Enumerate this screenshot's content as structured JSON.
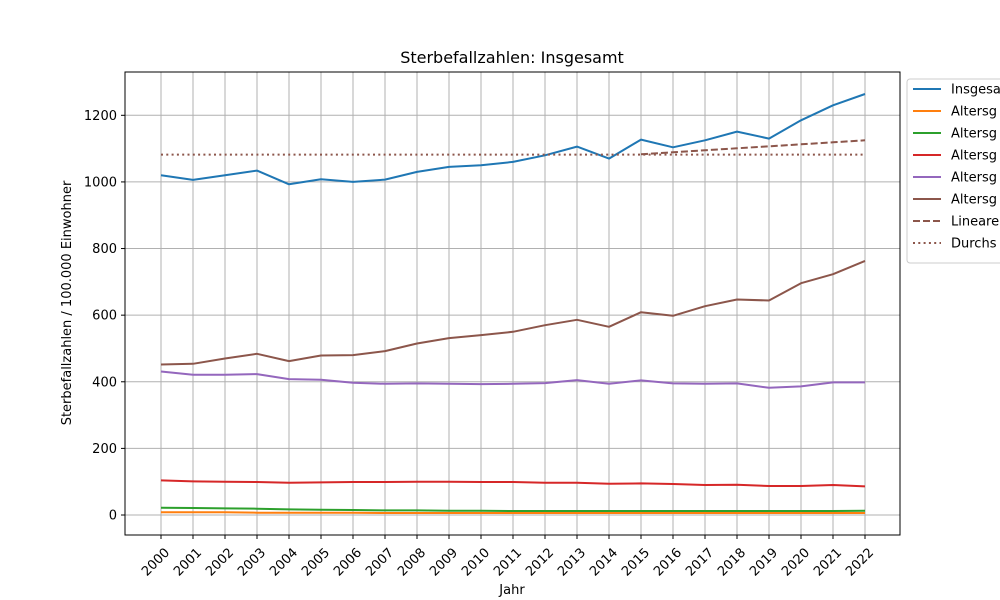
{
  "chart_data": {
    "type": "line",
    "title": "Sterbefallzahlen: Insgesamt",
    "xlabel": "Jahr",
    "ylabel": "Sterbefallzahlen / 100.000 Einwohner",
    "ylim": [
      -60,
      1330
    ],
    "yticks": [
      0,
      200,
      400,
      600,
      800,
      1000,
      1200
    ],
    "x": [
      "2000",
      "2001",
      "2002",
      "2003",
      "2004",
      "2005",
      "2006",
      "2007",
      "2008",
      "2009",
      "2010",
      "2011",
      "2012",
      "2013",
      "2014",
      "2015",
      "2016",
      "2017",
      "2018",
      "2019",
      "2020",
      "2021",
      "2022"
    ],
    "grid": true,
    "legend_position": "right",
    "series": [
      {
        "name": "Insgesa",
        "color": "#1f77b4",
        "style": "solid",
        "values": [
          1020,
          1006,
          1020,
          1034,
          993,
          1008,
          1000,
          1007,
          1030,
          1045,
          1050,
          1060,
          1080,
          1106,
          1070,
          1127,
          1104,
          1125,
          1151,
          1130,
          1185,
          1230,
          1264
        ]
      },
      {
        "name": "Altersg",
        "color": "#ff7f0e",
        "style": "solid",
        "values": [
          8,
          8,
          8,
          7,
          7,
          7,
          7,
          6,
          6,
          6,
          6,
          6,
          6,
          6,
          6,
          6,
          6,
          6,
          6,
          6,
          6,
          6,
          6
        ]
      },
      {
        "name": "Altersg",
        "color": "#2ca02c",
        "style": "solid",
        "values": [
          22,
          21,
          20,
          19,
          17,
          16,
          15,
          14,
          14,
          13,
          13,
          12,
          12,
          12,
          12,
          12,
          12,
          12,
          12,
          12,
          12,
          12,
          13
        ]
      },
      {
        "name": "Altersg",
        "color": "#d62728",
        "style": "solid",
        "values": [
          104,
          101,
          100,
          99,
          97,
          98,
          99,
          99,
          100,
          100,
          99,
          99,
          97,
          97,
          94,
          95,
          93,
          90,
          91,
          87,
          87,
          90,
          86
        ]
      },
      {
        "name": "Altersg",
        "color": "#9467bd",
        "style": "solid",
        "values": [
          431,
          421,
          421,
          423,
          408,
          406,
          397,
          394,
          395,
          394,
          393,
          394,
          396,
          405,
          394,
          404,
          395,
          394,
          395,
          382,
          386,
          398,
          398
        ]
      },
      {
        "name": "Altersg",
        "color": "#8c564b",
        "style": "solid",
        "values": [
          452,
          454,
          470,
          484,
          462,
          479,
          480,
          492,
          515,
          531,
          540,
          550,
          570,
          586,
          565,
          609,
          598,
          627,
          647,
          644,
          696,
          723,
          763
        ]
      }
    ],
    "trend": {
      "name": "Lineare",
      "color": "#8c564b",
      "style": "dashed",
      "x_from": "2015",
      "x_to": "2022",
      "values": [
        1083,
        1089,
        1095,
        1101,
        1107,
        1113,
        1119,
        1125
      ]
    },
    "mean": {
      "name": "Durchs",
      "color": "#8c564b",
      "style": "dotted",
      "x_from": "2000",
      "x_to": "2022",
      "value": 1082
    }
  }
}
